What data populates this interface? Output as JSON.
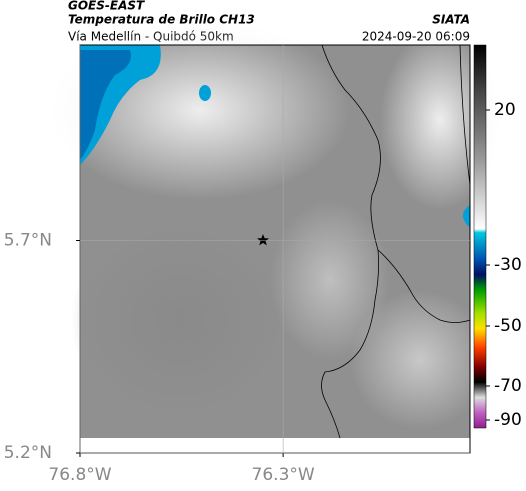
{
  "header": {
    "satellite": "GOES-EAST",
    "product": "Temperatura de Brillo CH13",
    "source": "SIATA",
    "route": "Vía Medellín - Quibdó 50km",
    "datetime": "2024-09-20 06:09"
  },
  "map": {
    "xlim": [
      -76.8,
      -75.84
    ],
    "ylim": [
      5.2,
      6.16
    ],
    "xticks": [
      {
        "value": -76.8,
        "label": "76.8°W"
      },
      {
        "value": -76.3,
        "label": "76.3°W"
      }
    ],
    "yticks": [
      {
        "value": 5.7,
        "label": "5.7°N"
      },
      {
        "value": 5.2,
        "label": "5.2°N"
      }
    ],
    "grid": true
  },
  "colorbar": {
    "ticks": [
      20,
      -30,
      -50,
      -70,
      -90
    ]
  }
}
